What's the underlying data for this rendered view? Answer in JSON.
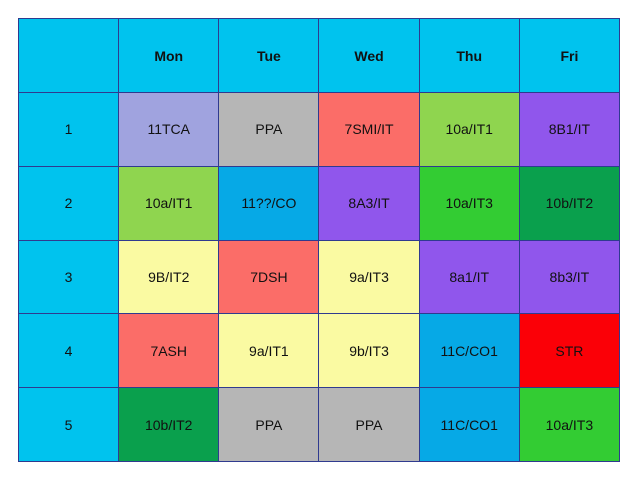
{
  "colors": {
    "header_bg": "#00c3ee",
    "border": "#2f3a8f"
  },
  "header": {
    "corner": "",
    "days": [
      "Mon",
      "Tue",
      "Wed",
      "Thu",
      "Fri"
    ]
  },
  "rows": [
    {
      "period": "1",
      "cells": [
        {
          "text": "11TCA",
          "bg": "#a0a3df",
          "fg": "#111111"
        },
        {
          "text": "PPA",
          "bg": "#b6b6b6",
          "fg": "#111111"
        },
        {
          "text": "7SMI/IT",
          "bg": "#fb6d68",
          "fg": "#111111"
        },
        {
          "text": "10a/IT1",
          "bg": "#8fd54f",
          "fg": "#111111"
        },
        {
          "text": "8B1/IT",
          "bg": "#9056ec",
          "fg": "#111111"
        }
      ]
    },
    {
      "period": "2",
      "cells": [
        {
          "text": "10a/IT1",
          "bg": "#8fd54f",
          "fg": "#111111"
        },
        {
          "text": "11??/CO",
          "bg": "#06a9e6",
          "fg": "#111111"
        },
        {
          "text": "8A3/IT",
          "bg": "#9056ec",
          "fg": "#111111"
        },
        {
          "text": "10a/IT3",
          "bg": "#33cc33",
          "fg": "#111111"
        },
        {
          "text": "10b/IT2",
          "bg": "#0aa04d",
          "fg": "#111111"
        }
      ]
    },
    {
      "period": "3",
      "cells": [
        {
          "text": "9B/IT2",
          "bg": "#fafaa2",
          "fg": "#111111"
        },
        {
          "text": "7DSH",
          "bg": "#fb6d68",
          "fg": "#111111"
        },
        {
          "text": "9a/IT3",
          "bg": "#fafaa2",
          "fg": "#111111"
        },
        {
          "text": "8a1/IT",
          "bg": "#9056ec",
          "fg": "#111111"
        },
        {
          "text": "8b3/IT",
          "bg": "#9056ec",
          "fg": "#111111"
        }
      ]
    },
    {
      "period": "4",
      "cells": [
        {
          "text": "7ASH",
          "bg": "#fb6d68",
          "fg": "#111111"
        },
        {
          "text": "9a/IT1",
          "bg": "#fafaa2",
          "fg": "#111111"
        },
        {
          "text": "9b/IT3",
          "bg": "#fafaa2",
          "fg": "#111111"
        },
        {
          "text": "11C/CO1",
          "bg": "#06a9e6",
          "fg": "#111111"
        },
        {
          "text": "STR",
          "bg": "#fb0007",
          "fg": "#111111"
        }
      ]
    },
    {
      "period": "5",
      "cells": [
        {
          "text": "10b/IT2",
          "bg": "#0aa04d",
          "fg": "#111111"
        },
        {
          "text": "PPA",
          "bg": "#b6b6b6",
          "fg": "#111111"
        },
        {
          "text": "PPA",
          "bg": "#b6b6b6",
          "fg": "#111111"
        },
        {
          "text": "11C/CO1",
          "bg": "#06a9e6",
          "fg": "#111111"
        },
        {
          "text": "10a/IT3",
          "bg": "#33cc33",
          "fg": "#111111"
        }
      ]
    }
  ]
}
